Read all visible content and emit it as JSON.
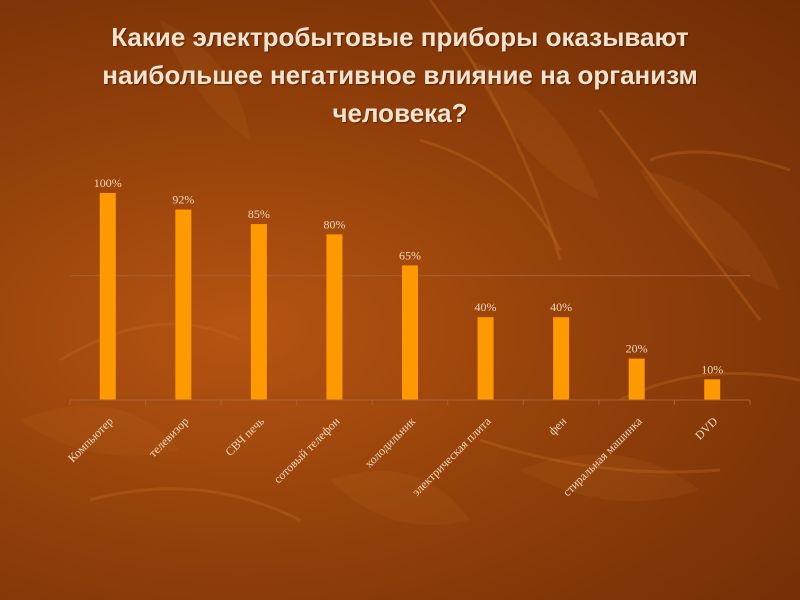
{
  "slide": {
    "title": "Какие электробытовые приборы оказывают наибольшее негативное влияние на организм человека?"
  },
  "colors": {
    "bar": "#ff9900",
    "background": "#93400a",
    "text": "#f3e3cf",
    "gridline": "#a9623a"
  },
  "chart_data": {
    "type": "bar",
    "title": "",
    "xlabel": "",
    "ylabel": "",
    "ylim": [
      0,
      100
    ],
    "grid": true,
    "gridlines": [
      60
    ],
    "categories": [
      "Компьютер",
      "телевизор",
      "СВЧ печь",
      "сотовый телефон",
      "холодильник",
      "электрическая плита",
      "фен",
      "стиральная машинка",
      "DVD"
    ],
    "values": [
      100,
      92,
      85,
      80,
      65,
      40,
      40,
      20,
      10
    ],
    "value_labels": [
      "100%",
      "92%",
      "85%",
      "80%",
      "65%",
      "40%",
      "40%",
      "20%",
      "10%"
    ]
  }
}
